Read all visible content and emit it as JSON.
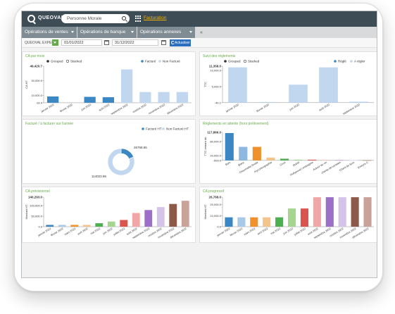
{
  "topbar": {
    "brand": "QUEOVAL",
    "search_value": "Personne Morale",
    "facturation_link": "Facturation"
  },
  "menubar": {
    "items": [
      {
        "label": "Opérations de ventes"
      },
      {
        "label": "Opérations de banque"
      },
      {
        "label": "Opérations annexes"
      }
    ],
    "collapse_glyph": "«"
  },
  "filters": {
    "company": "QUEOVAL EXPERT",
    "start_date": "01/01/2022",
    "end_date": "31/12/2022",
    "refresh_label": "Actualiser"
  },
  "legend_common": {
    "grouped": "Grouped",
    "stacked": "Stacked"
  },
  "colors": {
    "accent": "#6aa84f",
    "topbar": "#3e4c55",
    "menu": "#7f8c94",
    "blue_dark": "#3a87c4",
    "blue_light": "#c0d7ef"
  },
  "chart_data": [
    {
      "id": "ca_par_mois",
      "type": "bar",
      "title": "CA par mois",
      "ylabel": "CA HT",
      "ytick_labels": [
        "49,420.7",
        "30,000.0",
        "10,000.0",
        "-33.4"
      ],
      "ylim": [
        -33.4,
        49420.7
      ],
      "categories": [
        "janvier 2022",
        "février 2022",
        "juin 2022",
        "août 2022",
        "septembre 2022",
        "octobre 2022",
        "novembre 2022",
        "décembre 2022"
      ],
      "series": [
        {
          "name": "Facturé",
          "color": "#3a87c4",
          "values": [
            8500,
            0,
            8000,
            7500,
            0,
            0,
            0,
            0
          ]
        },
        {
          "name": "Non Facturé",
          "color": "#c0d7ef",
          "values": [
            0,
            0,
            0,
            0,
            45000,
            14500,
            14500,
            14500
          ]
        }
      ]
    },
    {
      "id": "suivi_reglements",
      "type": "bar",
      "title": "Suivi des règlements",
      "ylabel": "TTC",
      "ytick_labels": [
        "11,358.0",
        "10,000.0",
        "5,000.0",
        "-40.1"
      ],
      "ylim": [
        -40.1,
        11358
      ],
      "categories": [
        "janvier 2022",
        "février 2022",
        "juin 2022",
        "août 2022",
        "septembre 2022"
      ],
      "series": [
        {
          "name": "Réglé",
          "color": "#3a87c4",
          "values": [
            0,
            0,
            0,
            0,
            0
          ]
        },
        {
          "name": "A régler",
          "color": "#c0d7ef",
          "values": [
            11000,
            200,
            5600,
            11000,
            300
          ]
        }
      ]
    },
    {
      "id": "facture_a_facturer",
      "type": "pie",
      "title": "Facturé / à facturer sur l'année",
      "labels": [
        "Facturé HT",
        "Non Facturé HT"
      ],
      "values": [
        26768.65,
        114023.95
      ],
      "value_labels": [
        "26768.65",
        "114023.95"
      ],
      "colors": [
        "#3a87c4",
        "#c0d7ef"
      ]
    },
    {
      "id": "reglements_en_attente",
      "type": "bar",
      "title": "Règlements en attente (hors prélèvement)",
      "ylabel": "TTC restant dû",
      "ytick_labels": [
        "117,866.0",
        "80,000.0",
        "20,000.0",
        "-500.0"
      ],
      "ylim": [
        -500,
        117866
      ],
      "categories": [
        "Bam",
        "Blanc",
        "Chaussette Droite",
        "mycontrographie",
        "Cirus",
        "Dubet",
        "Hollywood compagnie",
        "Autour du vin",
        "champ de tomates",
        "Chant de Sion",
        "Eveiyre C"
      ],
      "colors": [
        "#3a87c4",
        "#8fb8e0",
        "#f0922b",
        "#f5c48a",
        "#4caf50",
        "#a5d68f",
        "#d9534f",
        "#f2a7a7",
        "#9c6fc9",
        "#d5c4e9",
        "#8d5a4a"
      ],
      "values": [
        115000,
        57000,
        57000,
        12000,
        7000,
        3000,
        3000,
        1500,
        1200,
        900,
        700
      ]
    },
    {
      "id": "ca_previsionnel",
      "type": "bar",
      "title": "CA prévisionnel",
      "ylabel": "Montant HT",
      "ytick_labels": [
        "140,293.0",
        "100,000.0",
        "50,000.0",
        "0.0"
      ],
      "ylim": [
        0,
        140293
      ],
      "categories": [
        "janvier 2022",
        "février 2022",
        "mars 2022",
        "avril 2022",
        "mai 2022",
        "juin 2022",
        "juillet 2022",
        "août 2022",
        "septembre 2022",
        "octobre 2022",
        "novembre 2022",
        "décembre 2022"
      ],
      "colors": [
        "#3a87c4",
        "#a9c9e8",
        "#f0922b",
        "#f5c48a",
        "#4caf50",
        "#a5d68f",
        "#d9534f",
        "#f2a7a7",
        "#9c6fc9",
        "#d5c4e9",
        "#8d5a4a",
        "#c9a29a"
      ],
      "values": [
        8500,
        8500,
        8500,
        8500,
        16500,
        24500,
        32000,
        65000,
        79000,
        93000,
        108000,
        123000
      ]
    },
    {
      "id": "ca_progressif",
      "type": "bar",
      "title": "CA progressif",
      "ylabel": "Montant HT",
      "ytick_labels": [
        "26,768.0",
        "20,000.0",
        "10,000.0",
        "0.0"
      ],
      "ylim": [
        0,
        26768
      ],
      "categories": [
        "janvier 2022",
        "février 2022",
        "mars 2022",
        "avril 2022",
        "mai 2022",
        "juin 2022",
        "juillet 2022",
        "août 2022",
        "septembre 2022",
        "octobre 2022",
        "novembre 2022",
        "décembre 2022"
      ],
      "colors": [
        "#3a87c4",
        "#a9c9e8",
        "#f0922b",
        "#f5c48a",
        "#4caf50",
        "#a5d68f",
        "#d9534f",
        "#f2a7a7",
        "#9c6fc9",
        "#d5c4e9",
        "#8d5a4a",
        "#c9a29a"
      ],
      "values": [
        8500,
        8500,
        8500,
        8500,
        8500,
        16500,
        16500,
        26700,
        26700,
        26700,
        26700,
        26700
      ]
    }
  ]
}
